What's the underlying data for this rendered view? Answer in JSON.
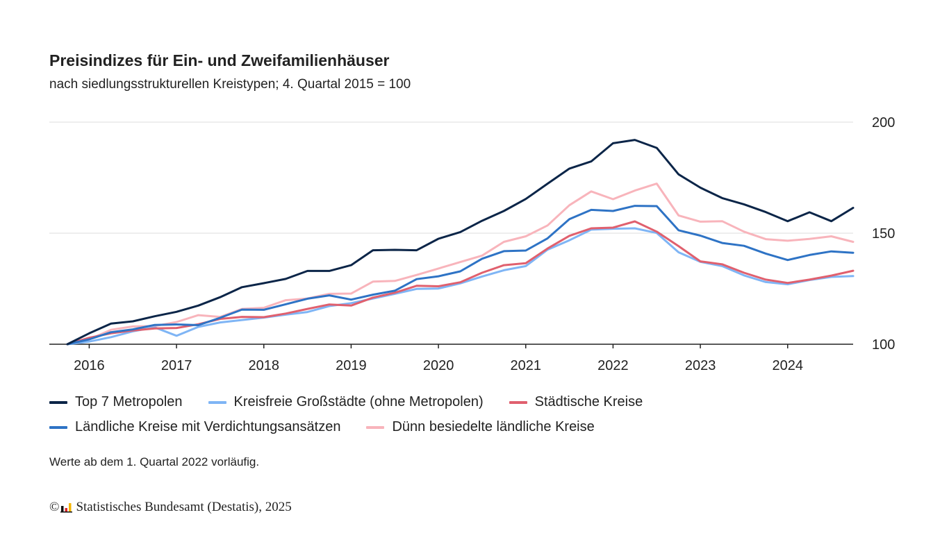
{
  "chart_data": {
    "type": "line",
    "title": "Preisindizes für Ein- und Zweifamilienhäuser",
    "subtitle": "nach siedlungsstrukturellen Kreistypen; 4. Quartal 2015 = 100",
    "x": [
      "2015-Q4",
      "2016-Q1",
      "2016-Q2",
      "2016-Q3",
      "2016-Q4",
      "2017-Q1",
      "2017-Q2",
      "2017-Q3",
      "2017-Q4",
      "2018-Q1",
      "2018-Q2",
      "2018-Q3",
      "2018-Q4",
      "2019-Q1",
      "2019-Q2",
      "2019-Q3",
      "2019-Q4",
      "2020-Q1",
      "2020-Q2",
      "2020-Q3",
      "2020-Q4",
      "2021-Q1",
      "2021-Q2",
      "2021-Q3",
      "2021-Q4",
      "2022-Q1",
      "2022-Q2",
      "2022-Q3",
      "2022-Q4",
      "2023-Q1",
      "2023-Q2",
      "2023-Q3",
      "2023-Q4",
      "2024-Q1",
      "2024-Q2",
      "2024-Q3",
      "2024-Q4"
    ],
    "xticks": [
      "2016",
      "2017",
      "2018",
      "2019",
      "2020",
      "2021",
      "2022",
      "2023",
      "2024"
    ],
    "yticks": [
      100,
      150,
      200
    ],
    "ylim": [
      100,
      200
    ],
    "grid": true,
    "legend_position": "bottom",
    "series": [
      {
        "name": "Top 7 Metropolen",
        "color": "#0b2548",
        "values": [
          100,
          104.9,
          109.3,
          110.3,
          112.6,
          114.6,
          117.4,
          121.2,
          125.7,
          127.5,
          129.4,
          133.0,
          133.0,
          135.6,
          142.3,
          142.5,
          142.3,
          147.5,
          150.5,
          155.6,
          160.0,
          165.4,
          172.3,
          179.1,
          182.3,
          190.5,
          192.0,
          188.4,
          176.5,
          170.5,
          165.8,
          163.0,
          159.5,
          155.4,
          159.4,
          155.4,
          161.4
        ]
      },
      {
        "name": "Kreisfreie Großstädte (ohne Metropolen)",
        "color": "#7fb5f5",
        "values": [
          100,
          101.2,
          103.2,
          105.8,
          107.6,
          103.8,
          107.8,
          109.8,
          110.9,
          112.0,
          113.3,
          114.5,
          117.2,
          118.5,
          120.6,
          122.7,
          124.9,
          125.1,
          127.4,
          130.5,
          133.3,
          135.2,
          142.6,
          146.8,
          151.6,
          152.0,
          152.2,
          150.1,
          141.4,
          137.1,
          135.2,
          131.0,
          128.0,
          127.0,
          128.9,
          130.3,
          130.7
        ]
      },
      {
        "name": "Städtische Kreise",
        "color": "#e0606e",
        "values": [
          100,
          102.9,
          104.9,
          106.2,
          107.1,
          107.3,
          109.0,
          111.4,
          112.3,
          112.2,
          113.8,
          115.9,
          117.9,
          117.4,
          121.0,
          123.2,
          126.3,
          126.1,
          127.9,
          132.2,
          135.6,
          136.5,
          143.1,
          148.8,
          152.2,
          152.5,
          155.3,
          150.7,
          144.2,
          137.3,
          136.0,
          132.2,
          129.1,
          127.6,
          129.1,
          130.9,
          133.1
        ]
      },
      {
        "name": "Ländliche Kreise mit Verdichtungsansätzen",
        "color": "#2e73c5",
        "values": [
          100,
          102.2,
          105.4,
          106.7,
          108.7,
          108.9,
          108.6,
          111.9,
          115.6,
          115.5,
          118.0,
          120.5,
          122.0,
          120.1,
          122.3,
          124.1,
          129.3,
          130.6,
          132.8,
          138.5,
          141.9,
          142.2,
          147.7,
          156.3,
          160.5,
          160.0,
          162.3,
          162.2,
          151.3,
          148.9,
          145.6,
          144.3,
          140.8,
          137.9,
          140.2,
          141.8,
          141.2
        ]
      },
      {
        "name": "Dünn besiedelte ländliche Kreise",
        "color": "#f8b4bb",
        "values": [
          100,
          102.2,
          106.5,
          108.0,
          108.2,
          110.0,
          113.1,
          112.3,
          115.9,
          116.4,
          119.8,
          120.6,
          122.7,
          122.8,
          128.2,
          128.5,
          131.2,
          134.1,
          137.0,
          139.9,
          146.1,
          148.6,
          153.5,
          162.6,
          168.8,
          165.3,
          169.2,
          172.3,
          158.0,
          155.2,
          155.4,
          150.7,
          147.3,
          146.6,
          147.4,
          148.6,
          146.1
        ]
      }
    ],
    "legend_rows": [
      [
        0,
        1,
        2
      ],
      [
        3,
        4
      ]
    ],
    "note": "Werte ab dem 1. Quartal 2022 vorläufig.",
    "source": "Statistisches Bundesamt (Destatis), 2025",
    "copyright_symbol": "©"
  }
}
